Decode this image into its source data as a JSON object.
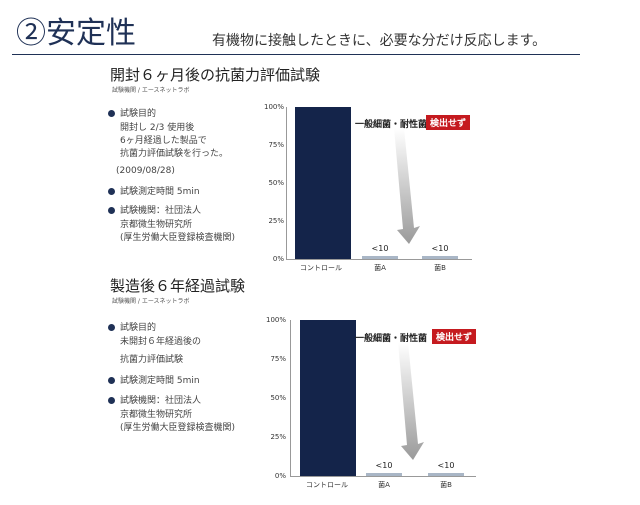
{
  "header": {
    "title": "②安定性",
    "subtitle": "有機物に接触したときに、必要な分だけ反応します。"
  },
  "sections": [
    {
      "title": "開封６ヶ月後の抗菌力評価試験",
      "note": "試験機関 / エースネットラボ",
      "bullet1_label": "試験目的",
      "bullet1_lines": [
        "開封し 2/3 使用後",
        "6ヶ月経過した製品で",
        "抗菌力評価試験を行った。"
      ],
      "date": "(2009/08/28)",
      "bullet2": "試験測定時間 5min",
      "bullet3_label": "試験機関：社団法人",
      "bullet3_lines": [
        "京都微生物研究所",
        "(厚生労働大臣登録検査機関)"
      ],
      "annotation": "一般細菌・耐性菌",
      "badge": "検出せず"
    },
    {
      "title": "製造後６年経過試験",
      "note": "試験機関 / エースネットラボ",
      "bullet1_label": "試験目的",
      "bullet1_lines": [
        "未開封６年経過後の",
        "抗菌力評価試験"
      ],
      "bullet2": "試験測定時間 5min",
      "bullet3_label": "試験機関：社団法人",
      "bullet3_lines": [
        "京都微生物研究所",
        "(厚生労働大臣登録検査機関)"
      ],
      "annotation": "一般細菌・耐性菌",
      "badge": "検出せず"
    }
  ],
  "chart_data": [
    {
      "type": "bar",
      "categories": [
        "コントロール",
        "菌A",
        "菌B"
      ],
      "values": [
        100,
        2,
        2
      ],
      "data_labels": [
        "",
        "<10",
        "<10"
      ],
      "yticks": [
        "100%",
        "75%",
        "50%",
        "25%",
        "0%"
      ],
      "ylim": [
        0,
        100
      ],
      "title": "",
      "xlabel": "",
      "ylabel": "",
      "colors": [
        "#14244a",
        "#a9b6c6",
        "#a9b6c6"
      ]
    },
    {
      "type": "bar",
      "categories": [
        "コントロール",
        "菌A",
        "菌B"
      ],
      "values": [
        100,
        2,
        2
      ],
      "data_labels": [
        "",
        "<10",
        "<10"
      ],
      "yticks": [
        "100%",
        "75%",
        "50%",
        "25%",
        "0%"
      ],
      "ylim": [
        0,
        100
      ],
      "title": "",
      "xlabel": "",
      "ylabel": "",
      "colors": [
        "#14244a",
        "#a9b6c6",
        "#a9b6c6"
      ]
    }
  ]
}
